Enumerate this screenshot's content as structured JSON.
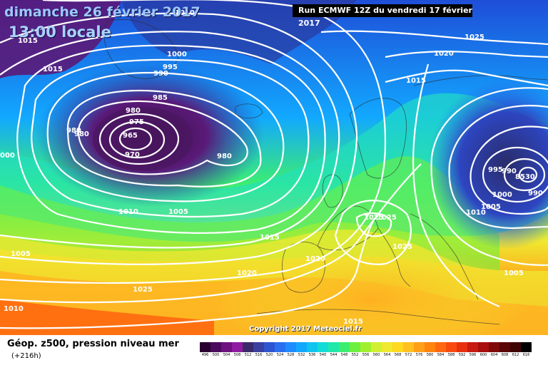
{
  "header": {
    "date_line": "dimanche 26 février 2017",
    "time_line": "13:00 locale",
    "run_info": "Run ECMWF 12Z du vendredi 17 février 2017"
  },
  "footer": {
    "parameter": "Géop. z500, pression niveau mer",
    "lead_time": "(+216h)",
    "copyright": "Copyright 2017 Meteociel.fr"
  },
  "legend": {
    "values": [
      "496",
      "500",
      "504",
      "508",
      "512",
      "516",
      "520",
      "524",
      "528",
      "532",
      "536",
      "540",
      "544",
      "548",
      "552",
      "556",
      "560",
      "564",
      "568",
      "572",
      "576",
      "580",
      "584",
      "588",
      "592",
      "596",
      "600",
      "604",
      "608",
      "612",
      "616"
    ],
    "colors": [
      "#2a0030",
      "#4b0a5e",
      "#6f1180",
      "#8f1ca0",
      "#3a2a6a",
      "#3b3fa0",
      "#2d55d0",
      "#2a6ff0",
      "#1e8cff",
      "#12a8ff",
      "#10c4f0",
      "#12dcd8",
      "#20e8a8",
      "#3cee70",
      "#6cf040",
      "#a0f030",
      "#d0f030",
      "#f0e830",
      "#ffd820",
      "#ffc020",
      "#ffa018",
      "#ff8410",
      "#ff6810",
      "#f84a10",
      "#e83010",
      "#c81a10",
      "#a80e0e",
      "#7e0a0a",
      "#5a0606",
      "#400404",
      "#000000"
    ]
  },
  "isobar_labels": [
    {
      "text": "1010"
    },
    {
      "text": "1015"
    },
    {
      "text": "1015"
    },
    {
      "text": "1000"
    },
    {
      "text": "995"
    },
    {
      "text": "990"
    },
    {
      "text": "985"
    },
    {
      "text": "980"
    },
    {
      "text": "975"
    },
    {
      "text": "980"
    },
    {
      "text": "980"
    },
    {
      "text": "965"
    },
    {
      "text": "970"
    },
    {
      "text": "980"
    },
    {
      "text": "1010"
    },
    {
      "text": "1005"
    },
    {
      "text": "000"
    },
    {
      "text": "1005"
    },
    {
      "text": "1015"
    },
    {
      "text": "1010"
    },
    {
      "text": "1020"
    },
    {
      "text": "1025"
    },
    {
      "text": "1025"
    },
    {
      "text": "1020"
    },
    {
      "text": "1015"
    },
    {
      "text": "1020"
    },
    {
      "text": "1025"
    },
    {
      "text": "1025"
    },
    {
      "text": "1025"
    },
    {
      "text": "1015"
    },
    {
      "text": "995"
    },
    {
      "text": "990"
    },
    {
      "text": "8530"
    },
    {
      "text": "990"
    },
    {
      "text": "1000"
    },
    {
      "text": "1005"
    },
    {
      "text": "1010"
    },
    {
      "text": "1005"
    }
  ]
}
